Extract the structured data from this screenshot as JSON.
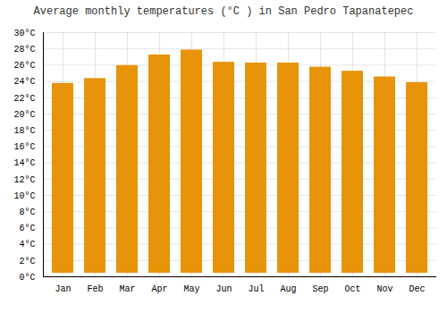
{
  "chart_data": {
    "type": "bar",
    "title": "Average monthly temperatures (°C ) in San Pedro Tapanatepec",
    "categories": [
      "Jan",
      "Feb",
      "Mar",
      "Apr",
      "May",
      "Jun",
      "Jul",
      "Aug",
      "Sep",
      "Oct",
      "Nov",
      "Dec"
    ],
    "values": [
      24.2,
      24.8,
      26.4,
      27.7,
      28.3,
      26.8,
      26.7,
      26.7,
      26.2,
      25.7,
      25.0,
      24.3
    ],
    "color": "#E8940A",
    "ylim": [
      0,
      30
    ],
    "yticks": [
      {
        "value": 0,
        "label": "0°C"
      },
      {
        "value": 2,
        "label": "2°C"
      },
      {
        "value": 4,
        "label": "4°C"
      },
      {
        "value": 6,
        "label": "6°C"
      },
      {
        "value": 8,
        "label": "8°C"
      },
      {
        "value": 10,
        "label": "10°C"
      },
      {
        "value": 12,
        "label": "12°C"
      },
      {
        "value": 14,
        "label": "14°C"
      },
      {
        "value": 16,
        "label": "16°C"
      },
      {
        "value": 18,
        "label": "18°C"
      },
      {
        "value": 20,
        "label": "20°C"
      },
      {
        "value": 22,
        "label": "22°C"
      },
      {
        "value": 24,
        "label": "24°C"
      },
      {
        "value": 26,
        "label": "26°C"
      },
      {
        "value": 28,
        "label": "28°C"
      },
      {
        "value": 30,
        "label": "30°C"
      }
    ],
    "grid": true
  }
}
